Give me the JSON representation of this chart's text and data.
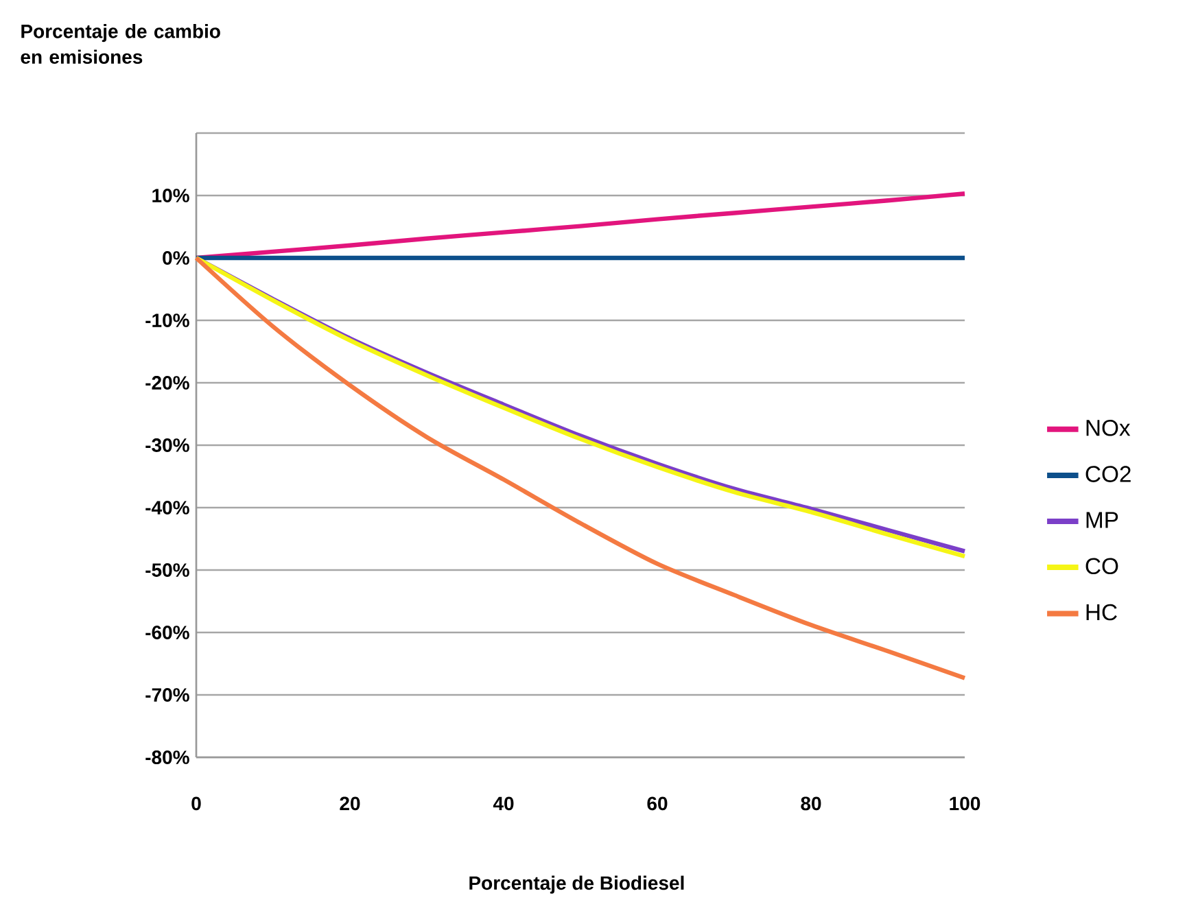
{
  "chart_data": {
    "type": "line",
    "ylabel": "Porcentaje de cambio en emisiones",
    "xlabel": "Porcentaje de Biodiesel",
    "x": [
      0,
      10,
      20,
      30,
      40,
      50,
      60,
      70,
      80,
      90,
      100
    ],
    "xlim": [
      0,
      100
    ],
    "xticks": [
      0,
      20,
      40,
      60,
      80,
      100
    ],
    "ylim": [
      -80,
      20
    ],
    "yticks": [
      {
        "value": -80,
        "label": "-80%"
      },
      {
        "value": -70,
        "label": "-70%"
      },
      {
        "value": -60,
        "label": "-60%"
      },
      {
        "value": -50,
        "label": "-50%"
      },
      {
        "value": -40,
        "label": "-40%"
      },
      {
        "value": -30,
        "label": "-30%"
      },
      {
        "value": -20,
        "label": "-20%"
      },
      {
        "value": -10,
        "label": "-10%"
      },
      {
        "value": 0,
        "label": "0%"
      },
      {
        "value": 10,
        "label": "10%"
      },
      {
        "value": 20,
        "label": null
      }
    ],
    "grid": "y",
    "legend": "right",
    "marker": "none",
    "line_style": "solid",
    "series": [
      {
        "name": "NOx",
        "color": "#e2157d",
        "values": [
          0,
          1,
          2,
          3.1,
          4.1,
          5.1,
          6.2,
          7.2,
          8.2,
          9.2,
          10.3
        ]
      },
      {
        "name": "CO2",
        "color": "#0d4f8b",
        "values": [
          0,
          0,
          0,
          0,
          0,
          0,
          0,
          0,
          0,
          0,
          0
        ]
      },
      {
        "name": "MP",
        "color": "#7b3fc8",
        "values": [
          0,
          -6.6,
          -12.9,
          -18.4,
          -23.5,
          -28.5,
          -33,
          -37,
          -40.2,
          -43.6,
          -47
        ]
      },
      {
        "name": "CO",
        "color": "#f5f516",
        "values": [
          0,
          -6.8,
          -13.2,
          -18.8,
          -24,
          -29,
          -33.5,
          -37.5,
          -40.7,
          -44.3,
          -47.8
        ]
      },
      {
        "name": "HC",
        "color": "#f47a42",
        "values": [
          0,
          -11,
          -20.4,
          -28.7,
          -35.5,
          -42.5,
          -49,
          -54,
          -58.8,
          -63,
          -67.3
        ]
      }
    ]
  }
}
